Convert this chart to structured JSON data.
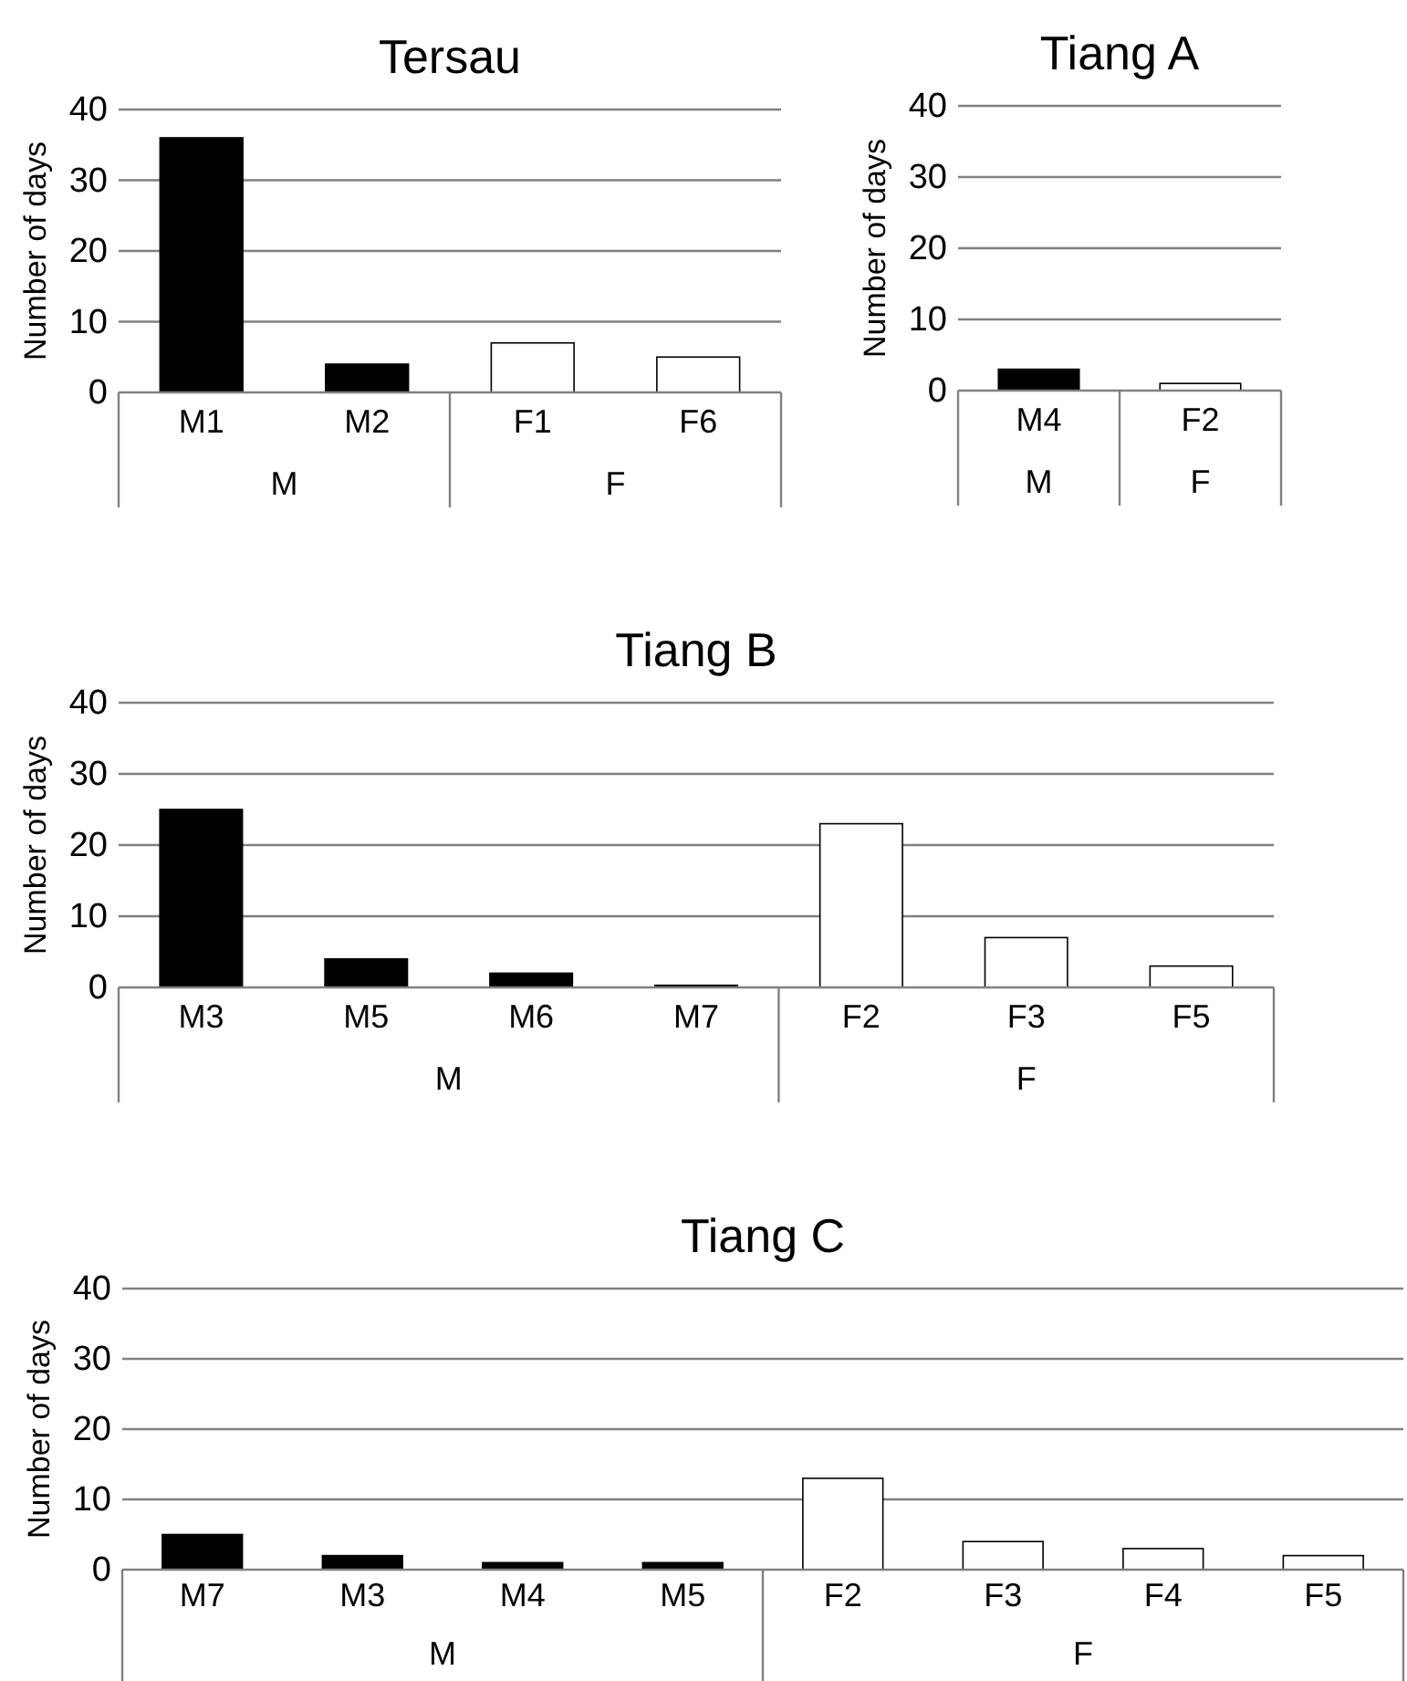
{
  "chart_data": [
    {
      "type": "bar",
      "title": "Tersau",
      "ylabel": "Number of days",
      "categories": [
        "M1",
        "M2",
        "F1",
        "F6"
      ],
      "series": [
        {
          "name": "M",
          "color": "#000000",
          "values": [
            36,
            4,
            null,
            null
          ]
        },
        {
          "name": "F",
          "color": "#ffffff",
          "values": [
            null,
            null,
            7,
            5
          ]
        }
      ],
      "ylim": [
        0,
        40
      ],
      "yticks": [
        0,
        10,
        20,
        30,
        40
      ],
      "grid": "y"
    },
    {
      "type": "bar",
      "title": "Tiang A",
      "ylabel": "Number of days",
      "categories": [
        "M4",
        "F2"
      ],
      "series": [
        {
          "name": "M",
          "color": "#000000",
          "values": [
            3,
            null
          ]
        },
        {
          "name": "F",
          "color": "#ffffff",
          "values": [
            null,
            1
          ]
        }
      ],
      "ylim": [
        0,
        40
      ],
      "yticks": [
        0,
        10,
        20,
        30,
        40
      ],
      "grid": "y"
    },
    {
      "type": "bar",
      "title": "Tiang B",
      "ylabel": "Number of days",
      "categories": [
        "M3",
        "M5",
        "M6",
        "M7",
        "F2",
        "F3",
        "F5"
      ],
      "series": [
        {
          "name": "M",
          "color": "#000000",
          "values": [
            25,
            4,
            2,
            0.3,
            null,
            null,
            null
          ]
        },
        {
          "name": "F",
          "color": "#ffffff",
          "values": [
            null,
            null,
            null,
            null,
            23,
            7,
            3
          ]
        }
      ],
      "ylim": [
        0,
        40
      ],
      "yticks": [
        0,
        10,
        20,
        30,
        40
      ],
      "grid": "y"
    },
    {
      "type": "bar",
      "title": "Tiang C",
      "ylabel": "Number of days",
      "categories": [
        "M7",
        "M3",
        "M4",
        "M5",
        "F2",
        "F3",
        "F4",
        "F5"
      ],
      "series": [
        {
          "name": "M",
          "color": "#000000",
          "values": [
            5,
            2,
            1,
            1,
            null,
            null,
            null,
            null
          ]
        },
        {
          "name": "F",
          "color": "#ffffff",
          "values": [
            null,
            null,
            null,
            null,
            13,
            4,
            3,
            2
          ]
        }
      ],
      "ylim": [
        0,
        40
      ],
      "yticks": [
        0,
        10,
        20,
        30,
        40
      ],
      "grid": "y"
    }
  ]
}
